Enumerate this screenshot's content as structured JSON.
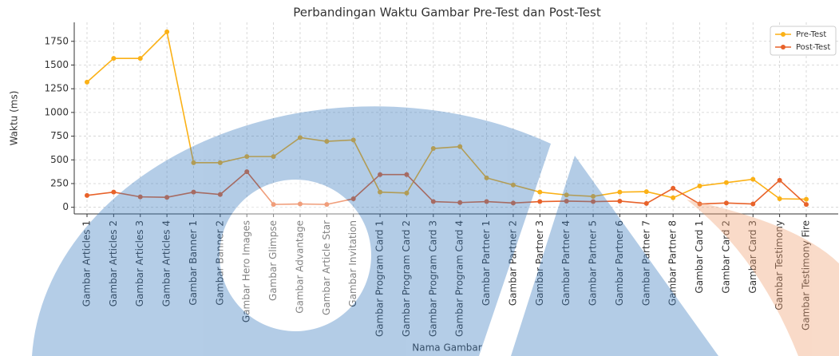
{
  "chart_data": {
    "type": "line",
    "title": "Perbandingan Waktu Gambar Pre-Test dan Post-Test",
    "x_label": "Nama Gambar",
    "y_label": "Waktu (ms)",
    "categories": [
      "Gambar Articles 1",
      "Gambar Articles 2",
      "Gambar Articles 3",
      "Gambar Articles 4",
      "Gambar Banner 1",
      "Gambar Banner 2",
      "Gambar Hero Images",
      "Gambar Glimpse",
      "Gambar Advantage",
      "Gambar Article Star",
      "Gambar Invitation",
      "Gambar Program Card 1",
      "Gambar Program Card 2",
      "Gambar Program Card 3",
      "Gambar Program Card 4",
      "Gambar Partner 1",
      "Gambar Partner 2",
      "Gambar Partner 3",
      "Gambar Partner 4",
      "Gambar Partner 5",
      "Gambar Partner 6",
      "Gambar Partner 7",
      "Gambar Partner 8",
      "Gambar Card 1",
      "Gambar Card 2",
      "Gambar Card 3",
      "Gambar Testimony",
      "Gambar Testimony Fire"
    ],
    "series": [
      {
        "name": "Pre-Test",
        "color": "#fbb116",
        "values": [
          1320,
          1570,
          1570,
          1850,
          470,
          470,
          535,
          535,
          735,
          695,
          710,
          160,
          150,
          620,
          640,
          310,
          235,
          160,
          130,
          115,
          160,
          165,
          100,
          225,
          260,
          295,
          90,
          85
        ]
      },
      {
        "name": "Post-Test",
        "color": "#e8622a",
        "values": [
          125,
          160,
          110,
          105,
          160,
          135,
          375,
          30,
          35,
          30,
          90,
          345,
          345,
          60,
          50,
          60,
          45,
          60,
          65,
          60,
          65,
          40,
          200,
          35,
          45,
          35,
          285,
          30
        ]
      }
    ],
    "ylim": [
      -70,
      1950
    ],
    "yticks": [
      0,
      250,
      500,
      750,
      1000,
      1250,
      1500,
      1750
    ],
    "grid": true,
    "legend": "upper right"
  }
}
